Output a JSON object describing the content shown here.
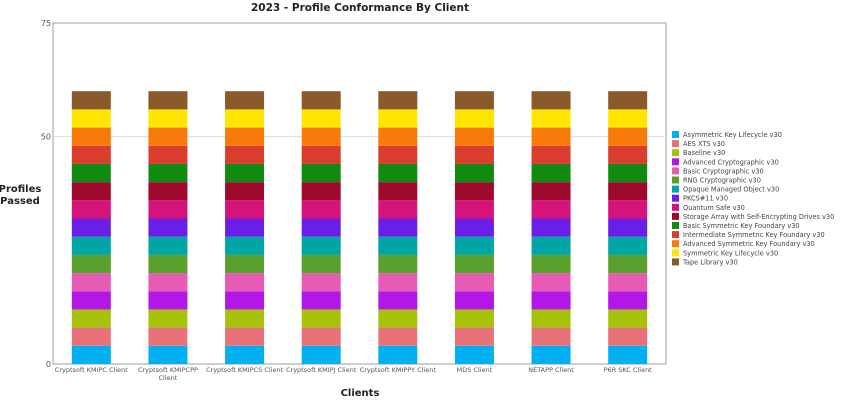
{
  "chart_data": {
    "type": "bar",
    "stacked": true,
    "title": "2023 - Profile Conformance By Client",
    "xlabel": "Clients",
    "ylabel_lines": [
      "Profiles",
      "Passed"
    ],
    "ylim": [
      0,
      75
    ],
    "yticks": [
      0,
      50,
      75
    ],
    "grid": true,
    "legend_position": "right",
    "categories": [
      [
        "Cryptsoft KMIPC Client"
      ],
      [
        "Cryptsoft KMIPCPP",
        "Client"
      ],
      [
        "Cryptsoft KMIPCS Client"
      ],
      [
        "Cryptsoft KMIPJ Client"
      ],
      [
        "Cryptsoft KMIPPY Client"
      ],
      [
        "MDS Client"
      ],
      [
        "NETAPP Client"
      ],
      [
        "P6R SKC Client"
      ]
    ],
    "series": [
      {
        "name": "Asymmetric Key Lifecycle v30",
        "color": "#00b0f0",
        "values": [
          4,
          4,
          4,
          4,
          4,
          4,
          4,
          4
        ]
      },
      {
        "name": "AES XTS v30",
        "color": "#e8727a",
        "values": [
          4,
          4,
          4,
          4,
          4,
          4,
          4,
          4
        ]
      },
      {
        "name": "Baseline v30",
        "color": "#a6c20a",
        "values": [
          4,
          4,
          4,
          4,
          4,
          4,
          4,
          4
        ]
      },
      {
        "name": "Advanced Cryptographic v30",
        "color": "#b317e8",
        "values": [
          4,
          4,
          4,
          4,
          4,
          4,
          4,
          4
        ]
      },
      {
        "name": "Basic Cryptographic v30",
        "color": "#e85bb4",
        "values": [
          4,
          4,
          4,
          4,
          4,
          4,
          4,
          4
        ]
      },
      {
        "name": "RNG Cryptographic v30",
        "color": "#5aa02c",
        "values": [
          4,
          4,
          4,
          4,
          4,
          4,
          4,
          4
        ]
      },
      {
        "name": "Opaque Managed Object v30",
        "color": "#00a6a6",
        "values": [
          4,
          4,
          4,
          4,
          4,
          4,
          4,
          4
        ]
      },
      {
        "name": "PKCS#11 v30",
        "color": "#6a1ee6",
        "values": [
          4,
          4,
          4,
          4,
          4,
          4,
          4,
          4
        ]
      },
      {
        "name": "Quantum Safe v30",
        "color": "#d6137a",
        "values": [
          4,
          4,
          4,
          4,
          4,
          4,
          4,
          4
        ]
      },
      {
        "name": "Storage Array with Self-Encrypting Drives v30",
        "color": "#9e0a2e",
        "values": [
          4,
          4,
          4,
          4,
          4,
          4,
          4,
          4
        ]
      },
      {
        "name": "Basic Symmetric Key Foundary v30",
        "color": "#108a10",
        "values": [
          4,
          4,
          4,
          4,
          4,
          4,
          4,
          4
        ]
      },
      {
        "name": "Intermediate Symmetric Key Foundary v30",
        "color": "#d93d2e",
        "values": [
          4,
          4,
          4,
          4,
          4,
          4,
          4,
          4
        ]
      },
      {
        "name": "Advanced Symmetric Key Foundary v30",
        "color": "#f77a0a",
        "values": [
          4,
          4,
          4,
          4,
          4,
          4,
          4,
          4
        ]
      },
      {
        "name": "Symmetric Key Lifecycle v30",
        "color": "#ffe600",
        "values": [
          4,
          4,
          4,
          4,
          4,
          4,
          4,
          4
        ]
      },
      {
        "name": "Tape Library v30",
        "color": "#8b5a2b",
        "values": [
          4,
          4,
          4,
          4,
          4,
          4,
          4,
          4
        ]
      }
    ]
  }
}
